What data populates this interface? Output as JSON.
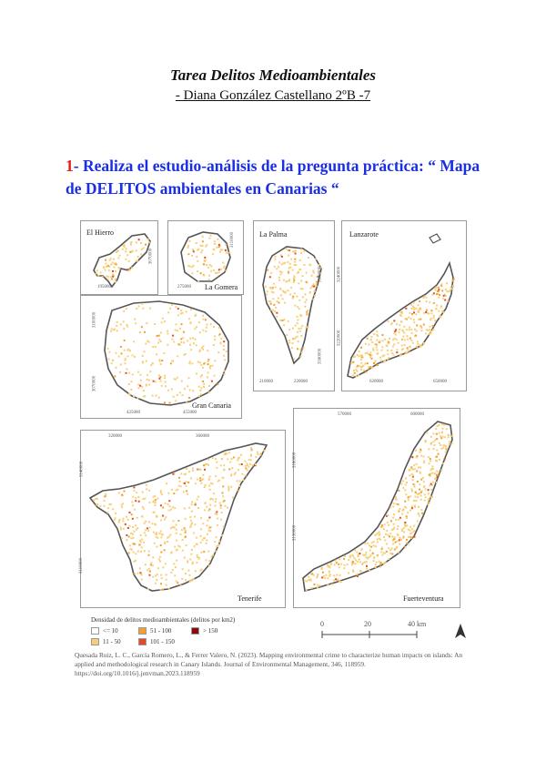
{
  "title": "Tarea Delitos Medioambientales",
  "author": "- Diana González Castellano 2ºB -7",
  "heading": {
    "number": "1",
    "text": "- Realiza el estudio-análisis de la pregunta práctica: “ Mapa de DELITOS ambientales en Canarias “"
  },
  "map": {
    "panels": {
      "el_hierro": {
        "name": "El Hierro",
        "ticks": [
          "195000",
          "3070000"
        ]
      },
      "la_gomera": {
        "name": "La Gomera",
        "ticks": [
          "275000",
          "3110000"
        ]
      },
      "la_palma": {
        "name": "La Palma",
        "ticks": [
          "210000",
          "220000",
          "3180000",
          "3160000"
        ]
      },
      "lanzarote": {
        "name": "Lanzarote",
        "ticks": [
          "620000",
          "650000",
          "3240000",
          "3220000"
        ]
      },
      "gran_canaria": {
        "name": "Gran Canaria",
        "ticks": [
          "425000",
          "455000",
          "3100000",
          "3070000"
        ]
      },
      "tenerife": {
        "name": "Tenerife",
        "ticks": [
          "320000",
          "360000",
          "3140000",
          "3110000"
        ]
      },
      "fuerteventura": {
        "name": "Fuerteventura",
        "ticks": [
          "570000",
          "600000",
          "3160000",
          "3130000"
        ]
      }
    },
    "legend": {
      "title": "Densidad de delitos medioambientales (delitos por km2)",
      "items": [
        {
          "label": "<= 10",
          "color": "#ffffff"
        },
        {
          "label": "51 - 100",
          "color": "#f0a030"
        },
        {
          "label": "> 150",
          "color": "#8b0a0a"
        },
        {
          "label": "11 - 50",
          "color": "#f7cf7a"
        },
        {
          "label": "101 - 150",
          "color": "#e04a2a"
        }
      ]
    },
    "scale": {
      "ticks": [
        "0",
        "20",
        "40 km"
      ]
    },
    "colors": {
      "low": "#f7cf7a",
      "mid": "#f0a030",
      "high": "#e04a2a",
      "max": "#8b0a0a",
      "outline": "#555555"
    }
  },
  "citation": "Quesada Ruiz, L. C., García Romero, L., & Ferrer Valero, N. (2023). Mapping environmental crime to characterize human impacts on islands: An applied and methodological research in Canary Islands. Journal of Environmental Management, 346, 118959. https://doi.org/10.1016/j.jenvman.2023.118959"
}
